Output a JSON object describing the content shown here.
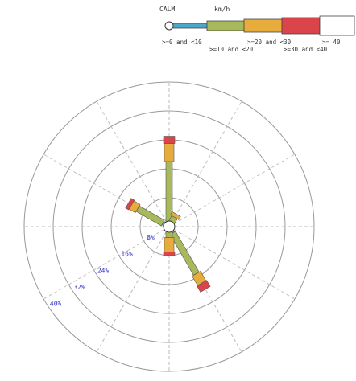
{
  "chart_data": {
    "type": "wind-rose",
    "legend": {
      "calm_label": "CALM",
      "unit_label": "km/h",
      "classes": [
        {
          "label": ">=0 and <10",
          "color": "#4aa8c8"
        },
        {
          "label": ">=10 and <20",
          "color": "#a7b95a"
        },
        {
          "label": ">=20 and <30",
          "color": "#e8ac3c"
        },
        {
          "label": ">=30 and <40",
          "color": "#d9454b"
        },
        {
          "label": ">= 40",
          "color": "#ffffff"
        }
      ]
    },
    "radial_axis": {
      "unit": "%",
      "max": 40,
      "ticks": [
        8,
        16,
        24,
        32,
        40
      ],
      "tick_labels": [
        "8%",
        "16%",
        "24%",
        "32%",
        "40%"
      ]
    },
    "directions_deg": [
      0,
      30,
      150,
      180,
      300
    ],
    "series": [
      {
        "direction": 0,
        "segments": [
          1,
          17,
          5,
          2,
          0
        ]
      },
      {
        "direction": 30,
        "segments": [
          1,
          2,
          1,
          0,
          0
        ]
      },
      {
        "direction": 150,
        "segments": [
          2,
          13,
          3,
          2,
          0
        ]
      },
      {
        "direction": 180,
        "segments": [
          1,
          2,
          4,
          1,
          0
        ]
      },
      {
        "direction": 300,
        "segments": [
          2,
          8,
          2,
          1,
          0
        ]
      }
    ],
    "colors": {
      "ring": "#999999",
      "grid": "#bbbbbb",
      "tick_text": "#3333cc",
      "legend_text": "#333333"
    }
  }
}
